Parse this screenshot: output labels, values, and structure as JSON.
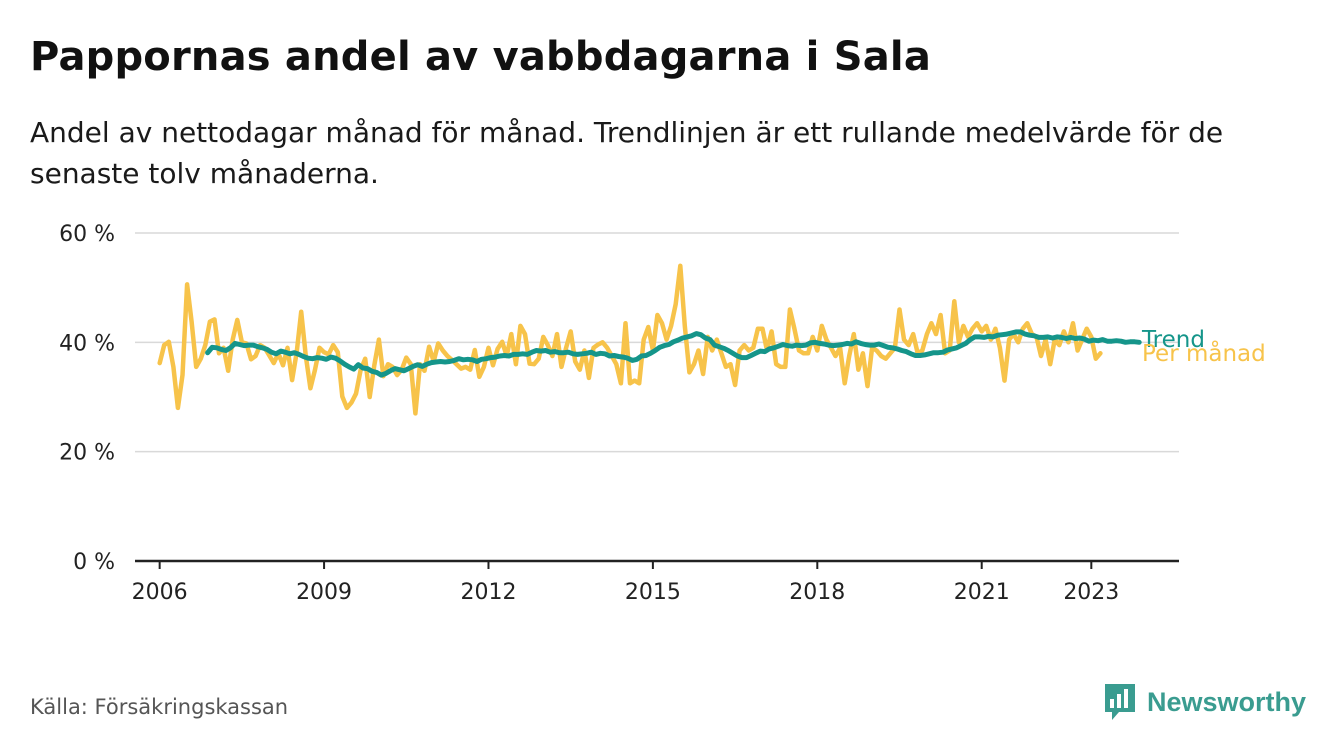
{
  "header": {
    "title": "Pappornas andel av vabbdagarna i Sala",
    "subtitle": "Andel av nettodagar månad för månad. Trendlinjen är ett rullande medelvärde för de senaste tolv månaderna."
  },
  "footer": {
    "source": "Källa: Försäkringskassan",
    "brand": "Newsworthy",
    "brand_icon": "newsworthy-chart-logo-icon"
  },
  "colors": {
    "monthly": "#f7c34a",
    "trend": "#15958a",
    "grid": "#d9d9d9",
    "axis": "#222222",
    "brand": "#3a9c90"
  },
  "chart_data": {
    "type": "line",
    "x_axis": {
      "ticks": [
        2006,
        2009,
        2012,
        2015,
        2018,
        2021,
        2023
      ],
      "tick_labels": [
        "2006",
        "2009",
        "2012",
        "2015",
        "2018",
        "2021",
        "2023"
      ],
      "range": [
        2005.55,
        2024.6
      ]
    },
    "y_axis": {
      "ticks": [
        0,
        20,
        40,
        60
      ],
      "tick_labels": [
        "0 %",
        "20 %",
        "40 %",
        "60 %"
      ],
      "range": [
        0,
        60
      ],
      "unit": "%"
    },
    "grid": true,
    "legend": "inline labels at right end of lines",
    "series": [
      {
        "name": "Trend",
        "start": 2006.875,
        "step": 0.08333,
        "values": [
          38.1,
          39.1,
          39.0,
          38.7,
          38.5,
          39.0,
          39.8,
          39.6,
          39.4,
          39.5,
          39.5,
          39.2,
          39.0,
          38.7,
          38.2,
          37.9,
          38.4,
          38.2,
          37.9,
          38.1,
          37.8,
          37.4,
          37.1,
          37.0,
          37.2,
          37.1,
          36.9,
          37.3,
          37.1,
          36.6,
          36.0,
          35.5,
          35.1,
          35.9,
          35.3,
          35.2,
          34.7,
          34.5,
          34.0,
          34.3,
          34.8,
          35.2,
          35.0,
          34.8,
          35.2,
          35.6,
          35.9,
          35.6,
          36.0,
          36.3,
          36.4,
          36.5,
          36.4,
          36.5,
          36.7,
          37.0,
          36.8,
          36.9,
          36.8,
          36.5,
          36.9,
          37.0,
          37.2,
          37.3,
          37.5,
          37.6,
          37.5,
          37.8,
          37.8,
          37.9,
          37.8,
          38.2,
          38.5,
          38.4,
          38.5,
          38.2,
          38.3,
          38.1,
          38.1,
          38.2,
          37.9,
          37.8,
          37.9,
          38.0,
          38.2,
          37.8,
          38.0,
          37.9,
          37.5,
          37.6,
          37.4,
          37.3,
          37.1,
          36.7,
          36.9,
          37.5,
          37.6,
          38.0,
          38.5,
          39.1,
          39.4,
          39.6,
          40.1,
          40.4,
          40.8,
          41.0,
          41.2,
          41.6,
          41.4,
          40.8,
          40.5,
          39.5,
          39.2,
          38.9,
          38.5,
          38.0,
          37.5,
          37.2,
          37.2,
          37.6,
          38.0,
          38.4,
          38.3,
          38.8,
          39.0,
          39.3,
          39.6,
          39.4,
          39.3,
          39.5,
          39.4,
          39.5,
          39.9,
          40.0,
          39.8,
          39.7,
          39.5,
          39.4,
          39.5,
          39.6,
          39.8,
          39.7,
          40.1,
          39.8,
          39.6,
          39.5,
          39.5,
          39.7,
          39.4,
          39.1,
          39.0,
          38.8,
          38.5,
          38.3,
          37.9,
          37.6,
          37.6,
          37.7,
          37.9,
          38.1,
          38.1,
          38.2,
          38.6,
          38.8,
          39.0,
          39.4,
          39.8,
          40.5,
          41.0,
          41.0,
          40.9,
          41.1,
          41.0,
          41.3,
          41.4,
          41.5,
          41.7,
          41.9,
          41.9,
          41.5,
          41.3,
          41.2,
          40.9,
          40.9,
          41.0,
          40.8,
          41.0,
          40.9,
          40.7,
          40.9,
          40.7,
          40.8,
          40.6,
          40.2,
          40.4,
          40.3,
          40.5,
          40.2,
          40.2,
          40.3,
          40.2,
          40.0,
          40.1,
          40.1,
          40.0
        ]
      },
      {
        "name": "Per månad",
        "start": 2006.0,
        "step": 0.08333,
        "values": [
          36.2,
          39.5,
          40.1,
          35.5,
          28.0,
          34.0,
          50.6,
          43.8,
          35.5,
          37.0,
          39.5,
          43.8,
          44.2,
          38.0,
          39.0,
          34.8,
          40.5,
          44.1,
          40.0,
          39.8,
          36.9,
          37.5,
          39.5,
          39.0,
          37.6,
          36.2,
          38.0,
          35.8,
          39.0,
          33.1,
          38.2,
          45.6,
          37.5,
          31.6,
          34.9,
          39.0,
          38.2,
          37.8,
          39.5,
          38.2,
          30.1,
          28.0,
          29.0,
          30.6,
          34.9,
          37.0,
          30.0,
          35.8,
          40.5,
          33.8,
          36.0,
          35.5,
          34.0,
          35.0,
          37.2,
          36.0,
          27.0,
          36.0,
          34.8,
          39.2,
          36.5,
          39.8,
          38.5,
          37.5,
          36.8,
          36.0,
          35.2,
          35.5,
          35.0,
          38.6,
          33.7,
          35.5,
          39.0,
          35.8,
          38.8,
          40.1,
          37.5,
          41.5,
          36.0,
          43.0,
          41.5,
          36.1,
          36.0,
          37.0,
          41.0,
          39.5,
          37.5,
          41.5,
          35.5,
          39.0,
          42.0,
          36.5,
          35.0,
          38.5,
          33.5,
          39.0,
          39.6,
          40.0,
          39.0,
          37.5,
          36.0,
          32.5,
          43.5,
          32.5,
          33.0,
          32.5,
          40.5,
          42.8,
          38.5,
          45.0,
          43.5,
          40.5,
          43.0,
          47.0,
          54.0,
          43.0,
          34.5,
          36.0,
          38.5,
          34.2,
          41.0,
          38.5,
          40.5,
          38.0,
          35.5,
          36.0,
          32.2,
          38.5,
          39.5,
          38.5,
          39.0,
          42.5,
          42.5,
          38.5,
          42.0,
          36.0,
          35.5,
          35.5,
          46.0,
          42.5,
          38.5,
          38.0,
          38.0,
          41.0,
          38.5,
          43.0,
          40.5,
          39.0,
          37.5,
          39.0,
          32.5,
          37.5,
          41.5,
          35.0,
          38.0,
          32.0,
          39.0,
          38.5,
          37.5,
          37.0,
          38.0,
          39.0,
          46.0,
          40.5,
          39.5,
          41.5,
          38.0,
          38.5,
          41.5,
          43.5,
          41.5,
          45.0,
          38.0,
          38.5,
          47.5,
          40.0,
          43.0,
          41.0,
          42.5,
          43.5,
          42.0,
          43.0,
          40.5,
          42.5,
          39.0,
          33.0,
          40.5,
          41.5,
          40.0,
          42.5,
          43.5,
          41.5,
          41.0,
          37.5,
          40.5,
          36.0,
          40.5,
          39.5,
          42.0,
          40.0,
          43.5,
          38.5,
          40.5,
          42.5,
          41.0,
          37.0,
          38.0
        ]
      }
    ]
  }
}
